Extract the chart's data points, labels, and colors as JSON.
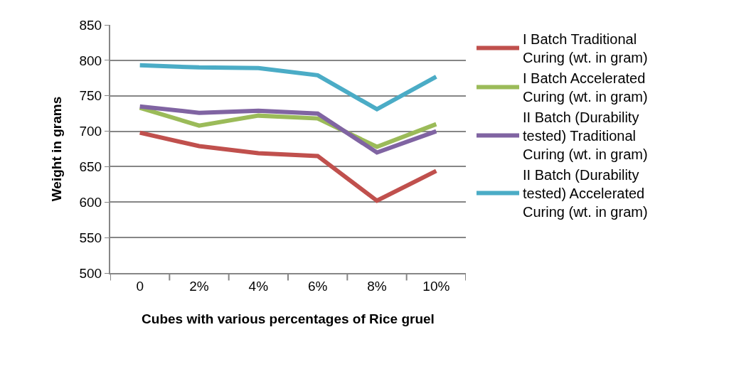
{
  "chart_data": {
    "type": "line",
    "xlabel": "Cubes with various percentages of Rice gruel",
    "ylabel": "Weight in grams",
    "categories": [
      "0",
      "2%",
      "4%",
      "6%",
      "8%",
      "10%"
    ],
    "series": [
      {
        "name": "I Batch Traditional Curing (wt. in gram)",
        "color": "#c0504d",
        "values": [
          698,
          679,
          669,
          665,
          602,
          644
        ]
      },
      {
        "name": "I Batch Accelerated Curing (wt. in gram)",
        "color": "#9bbb59",
        "values": [
          733,
          708,
          722,
          718,
          678,
          710
        ]
      },
      {
        "name": "II Batch (Durability tested) Traditional Curing (wt. in gram)",
        "color": "#8064a2",
        "values": [
          735,
          726,
          729,
          725,
          670,
          700
        ]
      },
      {
        "name": "II Batch (Durability tested) Accelerated Curing (wt. in gram)",
        "color": "#4bacc6",
        "values": [
          793,
          790,
          789,
          779,
          731,
          777
        ]
      }
    ],
    "ylim": [
      500,
      850
    ],
    "yticks": [
      500,
      550,
      600,
      650,
      700,
      750,
      800,
      850
    ],
    "grid": "y",
    "legend": "right",
    "marker": "none",
    "line_style": "solid"
  }
}
